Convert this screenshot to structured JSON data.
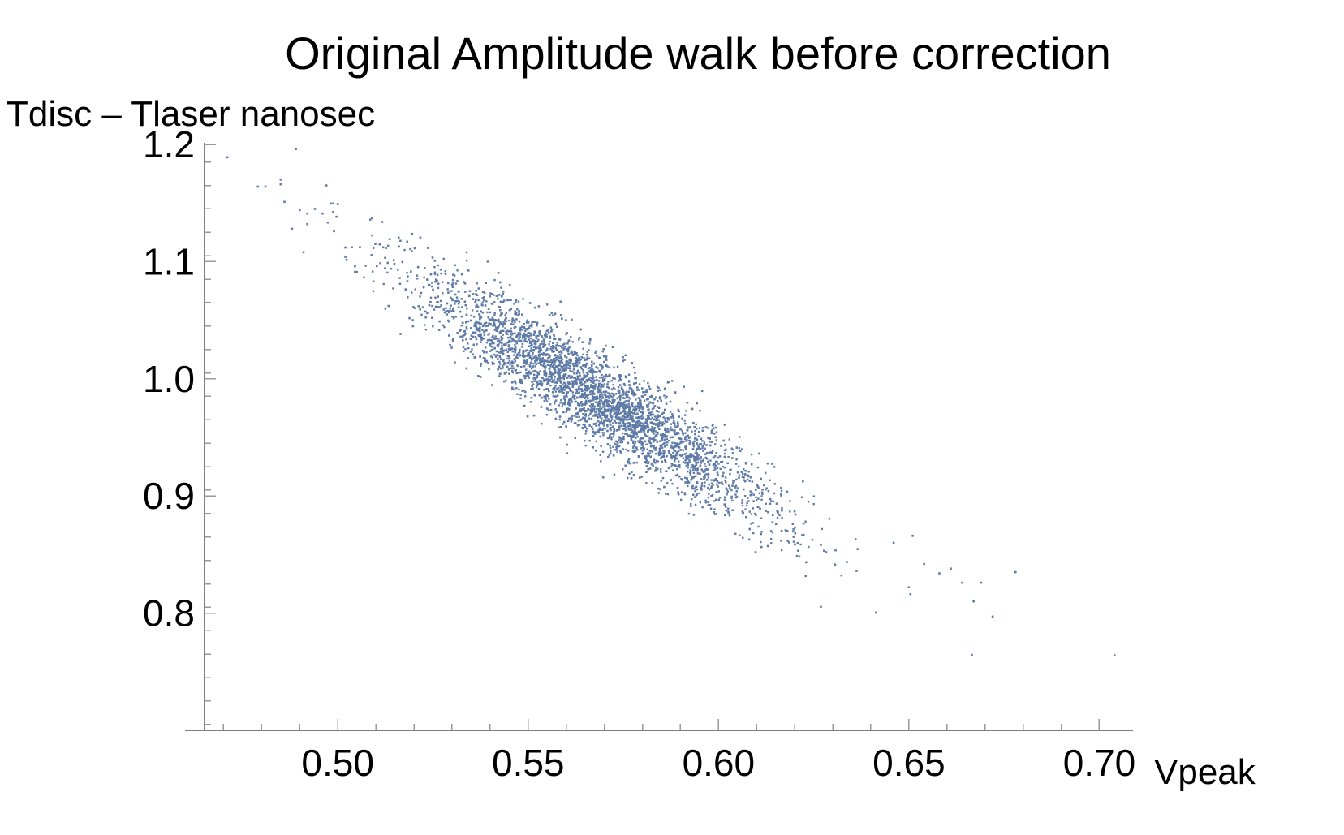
{
  "chart_data": {
    "type": "scatter",
    "title": "Original Amplitude walk before correction",
    "xlabel": "Vpeak",
    "ylabel": "Tdisc – Tlaser nanosec",
    "xlim": [
      0.465,
      0.708
    ],
    "ylim": [
      0.7,
      1.2
    ],
    "x_ticks": [
      "0.50",
      "0.55",
      "0.60",
      "0.65",
      "0.70"
    ],
    "y_ticks": [
      "1.2",
      "1.1",
      "1.0",
      "0.9",
      "0.8"
    ],
    "grid": false,
    "legend": "none",
    "point_color": "#5e7aa6",
    "trend_description": "Dense negatively-correlated cloud of several thousand points, approximately centered near Tdisc – Tlaser = 1.0 at Vpeak = 0.56 and declining to about 0.9 at Vpeak = 0.61",
    "series": [
      {
        "points": [
          [
            0.471,
            1.189
          ],
          [
            0.489,
            1.196
          ],
          [
            0.479,
            1.164
          ],
          [
            0.481,
            1.164
          ],
          [
            0.485,
            1.166
          ],
          [
            0.485,
            1.17
          ],
          [
            0.486,
            1.151
          ],
          [
            0.488,
            1.128
          ],
          [
            0.49,
            1.144
          ],
          [
            0.492,
            1.141
          ],
          [
            0.494,
            1.145
          ],
          [
            0.496,
            1.141
          ],
          [
            0.492,
            1.132
          ],
          [
            0.497,
            1.165
          ],
          [
            0.499,
            1.126
          ],
          [
            0.5,
            1.149
          ],
          [
            0.491,
            1.108
          ],
          [
            0.502,
            1.112
          ],
          [
            0.502,
            1.104
          ],
          [
            0.509,
            1.137
          ],
          [
            0.636,
            0.863
          ],
          [
            0.646,
            0.86
          ],
          [
            0.651,
            0.866
          ],
          [
            0.654,
            0.842
          ],
          [
            0.658,
            0.834
          ],
          [
            0.661,
            0.838
          ],
          [
            0.664,
            0.826
          ],
          [
            0.667,
            0.81
          ],
          [
            0.669,
            0.826
          ],
          [
            0.672,
            0.797
          ],
          [
            0.678,
            0.835
          ],
          [
            0.704,
            0.764
          ]
        ]
      }
    ]
  }
}
